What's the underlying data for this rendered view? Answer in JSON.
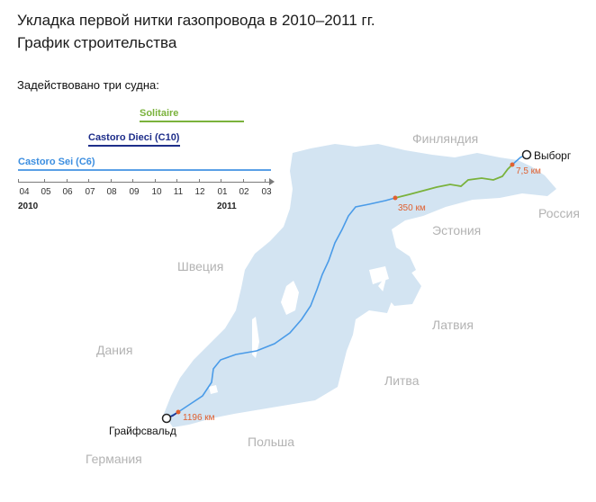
{
  "title": "Укладка первой нитки газопровода в 2010–2011 гг.",
  "subtitle": "График строительства",
  "intro": "Задействовано три судна:",
  "ships": [
    {
      "name": "Solitaire",
      "color": "#7ab23c"
    },
    {
      "name": "Castoro Dieci (C10)",
      "color": "#1e2e8a"
    },
    {
      "name": "Castoro Sei (C6)",
      "color": "#3c8ee0"
    }
  ],
  "timeline": {
    "months": [
      "04",
      "05",
      "06",
      "07",
      "08",
      "09",
      "10",
      "11",
      "12",
      "01",
      "02",
      "03"
    ],
    "years": [
      "2010",
      "2011"
    ]
  },
  "countries": {
    "finland": "Финляндия",
    "russia": "Россия",
    "estonia": "Эстония",
    "sweden": "Швеция",
    "latvia": "Латвия",
    "denmark": "Дания",
    "lithuania": "Литва",
    "poland": "Польша",
    "germany": "Германия"
  },
  "cities": {
    "vyborg": "Выборг",
    "greifswald": "Грайфсвальд"
  },
  "km_markers": {
    "km_7_5": "7,5 км",
    "km_350": "350 км",
    "km_1196": "1196 км"
  },
  "colors": {
    "sea": "#d3e4f2",
    "pipeline_c6": "#4a9be8",
    "pipeline_solitaire": "#7ab23c",
    "pipeline_c10": "#1e2e8a",
    "km_marker": "#e06030"
  }
}
